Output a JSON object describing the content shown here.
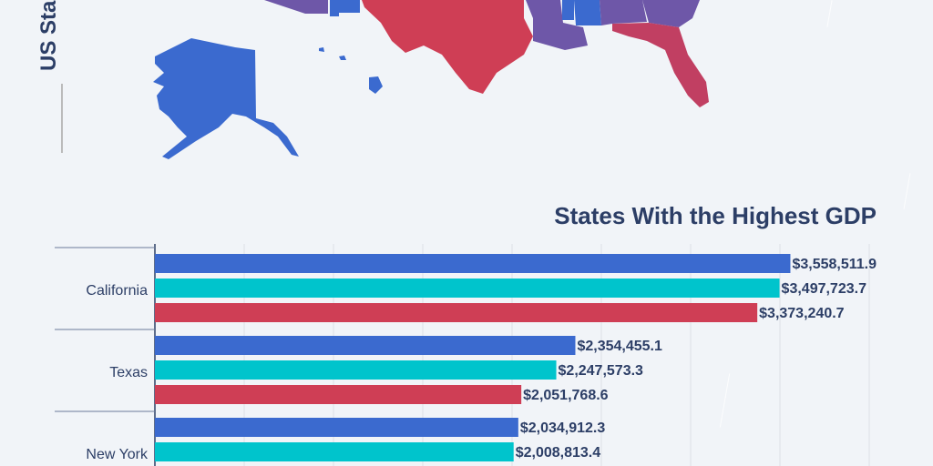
{
  "map_title": "US Sta",
  "map_colors": {
    "blue": "#3b6acf",
    "red": "#cf3e55",
    "purple": "#6e57a8"
  },
  "chart_data": {
    "type": "bar",
    "orientation": "horizontal",
    "title": "States With the Highest GDP",
    "categories": [
      "California",
      "Texas",
      "New York"
    ],
    "series": [
      {
        "color": "#3b6acf",
        "values": [
          3558511.9,
          2354455.1,
          2034912.3
        ]
      },
      {
        "color": "#00c4cc",
        "values": [
          3497723.7,
          2247573.3,
          2008813.4
        ]
      },
      {
        "color": "#cf3e55",
        "values": [
          3373240.7,
          2051768.6,
          null
        ]
      }
    ],
    "labels": [
      [
        "$3,558,511.9",
        "$2,354,455.1",
        "$2,034,912.3"
      ],
      [
        "$3,497,723.7",
        "$2,247,573.3",
        "$2,008,813.4"
      ],
      [
        "$3,373,240.7",
        "$2,051,768.6",
        ""
      ]
    ],
    "xlim": [
      0,
      4000000
    ],
    "grid": true
  }
}
